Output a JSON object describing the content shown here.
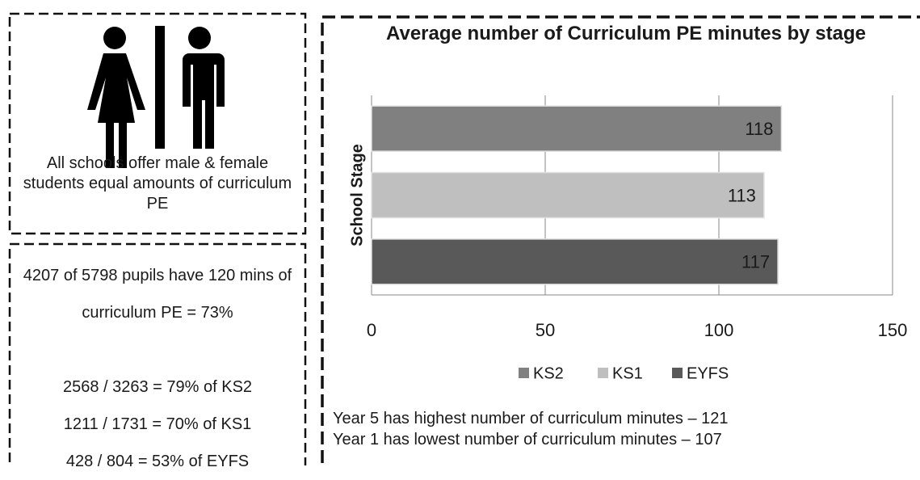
{
  "info_panel": {
    "text": "All schools offer male & female students equal amounts of curriculum PE"
  },
  "stats_panel": {
    "lines": [
      "4207 of 5798 pupils have 120 mins of curriculum PE = 73%",
      "2568 / 3263 = 79% of KS2",
      "1211 / 1731 = 70% of KS1",
      "428 / 804 = 53% of EYFS"
    ]
  },
  "chart_data": {
    "type": "bar",
    "orientation": "horizontal",
    "title": "Average number of Curriculum PE minutes by stage",
    "y_label": "School Stage",
    "series": [
      {
        "name": "KS2",
        "color": "#808080",
        "values": [
          118
        ]
      },
      {
        "name": "KS1",
        "color": "#bfbfbf",
        "values": [
          113
        ]
      },
      {
        "name": "EYFS",
        "color": "#595959",
        "values": [
          117
        ]
      }
    ],
    "xlim": [
      0,
      150
    ],
    "xticks": [
      0,
      50,
      100,
      150
    ],
    "grid": true,
    "legend": "bottom",
    "notes": [
      "Year 5 has highest number of curriculum minutes – 121",
      "Year 1 has lowest number of curriculum minutes – 107"
    ]
  }
}
